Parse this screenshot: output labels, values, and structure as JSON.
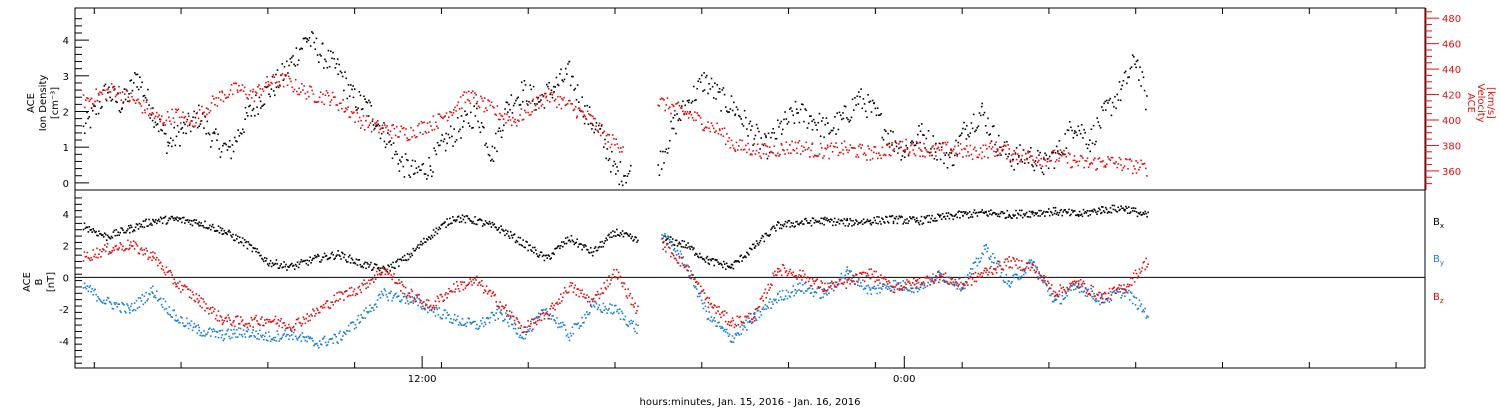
{
  "chart_data": [
    {
      "type": "scatter",
      "panel": "top",
      "left_axis_label": [
        "ACE",
        "Ion Density",
        "[cm⁻³]"
      ],
      "right_axis_label": [
        "ACE",
        "Velocity",
        "[km/s]"
      ],
      "ylim_left": [
        -0.2,
        4.9
      ],
      "ylim_right": [
        345,
        488
      ],
      "left_ticks": [
        "0",
        "1",
        "2",
        "3",
        "4"
      ],
      "right_ticks": [
        "360",
        "380",
        "400",
        "420",
        "440",
        "460",
        "480"
      ],
      "colors": {
        "density": "#000000",
        "velocity": "#e01010"
      },
      "density_points": [
        [
          0.2,
          1.5
        ],
        [
          0.5,
          2.0
        ],
        [
          0.8,
          2.6
        ],
        [
          1.2,
          2.2
        ],
        [
          1.6,
          3.0
        ],
        [
          2.0,
          2.0
        ],
        [
          2.4,
          1.1
        ],
        [
          2.8,
          1.5
        ],
        [
          3.2,
          1.9
        ],
        [
          3.6,
          1.2
        ],
        [
          4.0,
          0.9
        ],
        [
          4.4,
          1.8
        ],
        [
          4.8,
          2.4
        ],
        [
          5.2,
          2.8
        ],
        [
          5.6,
          3.4
        ],
        [
          6.0,
          4.1
        ],
        [
          6.4,
          3.6
        ],
        [
          6.8,
          3.2
        ],
        [
          7.2,
          2.4
        ],
        [
          7.6,
          2.1
        ],
        [
          8.0,
          1.4
        ],
        [
          8.4,
          0.6
        ],
        [
          8.8,
          0.3
        ],
        [
          9.2,
          0.5
        ],
        [
          9.6,
          1.2
        ],
        [
          10.0,
          1.6
        ],
        [
          10.4,
          2.0
        ],
        [
          10.8,
          0.8
        ],
        [
          11.2,
          2.2
        ],
        [
          11.6,
          2.6
        ],
        [
          12.0,
          2.3
        ],
        [
          12.4,
          2.7
        ],
        [
          12.8,
          3.1
        ],
        [
          13.2,
          2.0
        ],
        [
          13.6,
          1.4
        ],
        [
          14.0,
          0.3
        ],
        [
          14.4,
          0.3
        ],
        [
          15.1,
          0.5
        ],
        [
          15.5,
          1.6
        ],
        [
          15.9,
          2.3
        ],
        [
          16.3,
          2.9
        ],
        [
          16.7,
          2.4
        ],
        [
          17.1,
          2.1
        ],
        [
          17.5,
          1.5
        ],
        [
          17.9,
          1.0
        ],
        [
          18.3,
          1.6
        ],
        [
          18.7,
          2.0
        ],
        [
          19.1,
          1.8
        ],
        [
          19.5,
          1.5
        ],
        [
          19.9,
          1.8
        ],
        [
          20.3,
          2.4
        ],
        [
          20.7,
          2.0
        ],
        [
          21.1,
          1.3
        ],
        [
          21.5,
          0.9
        ],
        [
          21.9,
          1.4
        ],
        [
          22.3,
          1.0
        ],
        [
          22.7,
          0.7
        ],
        [
          23.1,
          1.6
        ],
        [
          23.5,
          2.0
        ],
        [
          23.9,
          1.1
        ],
        [
          24.3,
          0.7
        ],
        [
          24.7,
          0.8
        ],
        [
          25.1,
          0.5
        ],
        [
          25.5,
          0.9
        ],
        [
          25.9,
          1.7
        ],
        [
          26.3,
          1.2
        ],
        [
          26.7,
          2.0
        ],
        [
          27.1,
          2.6
        ],
        [
          27.5,
          3.5
        ],
        [
          27.8,
          2.1
        ]
      ],
      "velocity_points": [
        [
          0.2,
          415
        ],
        [
          0.6,
          420
        ],
        [
          1.0,
          425
        ],
        [
          1.4,
          418
        ],
        [
          1.8,
          410
        ],
        [
          2.2,
          400
        ],
        [
          2.6,
          405
        ],
        [
          3.0,
          398
        ],
        [
          3.4,
          410
        ],
        [
          3.8,
          420
        ],
        [
          4.2,
          425
        ],
        [
          4.6,
          420
        ],
        [
          5.0,
          430
        ],
        [
          5.4,
          432
        ],
        [
          5.8,
          425
        ],
        [
          6.2,
          420
        ],
        [
          6.6,
          418
        ],
        [
          7.0,
          410
        ],
        [
          7.4,
          400
        ],
        [
          7.8,
          395
        ],
        [
          8.2,
          392
        ],
        [
          8.6,
          390
        ],
        [
          9.0,
          395
        ],
        [
          9.4,
          400
        ],
        [
          9.8,
          410
        ],
        [
          10.2,
          420
        ],
        [
          10.6,
          412
        ],
        [
          11.0,
          405
        ],
        [
          11.4,
          400
        ],
        [
          11.8,
          410
        ],
        [
          12.2,
          420
        ],
        [
          12.6,
          415
        ],
        [
          13.0,
          408
        ],
        [
          13.4,
          400
        ],
        [
          13.8,
          385
        ],
        [
          14.2,
          380
        ],
        [
          15.1,
          415
        ],
        [
          15.5,
          410
        ],
        [
          15.9,
          405
        ],
        [
          16.3,
          398
        ],
        [
          16.7,
          392
        ],
        [
          17.1,
          380
        ],
        [
          17.5,
          378
        ],
        [
          17.9,
          376
        ],
        [
          18.3,
          378
        ],
        [
          18.7,
          380
        ],
        [
          19.1,
          377
        ],
        [
          19.5,
          376
        ],
        [
          19.9,
          378
        ],
        [
          20.3,
          376
        ],
        [
          20.7,
          374
        ],
        [
          21.1,
          378
        ],
        [
          21.5,
          380
        ],
        [
          21.9,
          378
        ],
        [
          22.3,
          376
        ],
        [
          22.7,
          378
        ],
        [
          23.1,
          375
        ],
        [
          23.5,
          376
        ],
        [
          23.9,
          378
        ],
        [
          24.3,
          374
        ],
        [
          24.7,
          372
        ],
        [
          25.1,
          370
        ],
        [
          25.5,
          372
        ],
        [
          25.9,
          368
        ],
        [
          26.3,
          366
        ],
        [
          26.7,
          368
        ],
        [
          27.1,
          366
        ],
        [
          27.5,
          364
        ],
        [
          27.8,
          362
        ]
      ]
    },
    {
      "type": "scatter",
      "panel": "bottom",
      "left_axis_label": [
        "ACE",
        "B",
        "[nT]"
      ],
      "ylim": [
        -5.7,
        5.5
      ],
      "left_ticks": [
        "-4",
        "-2",
        "0",
        "2",
        "4"
      ],
      "legend": [
        {
          "label": "Bx",
          "main": "B",
          "sub": "x",
          "color": "#000000"
        },
        {
          "label": "By",
          "main": "B",
          "sub": "y",
          "color": "#1a7fd4"
        },
        {
          "label": "Bz",
          "main": "B",
          "sub": "z",
          "color": "#e01010"
        }
      ],
      "bx_points": [
        [
          0.2,
          3.3
        ],
        [
          0.8,
          2.6
        ],
        [
          1.4,
          3.1
        ],
        [
          2.0,
          3.6
        ],
        [
          2.6,
          3.7
        ],
        [
          3.2,
          3.5
        ],
        [
          3.8,
          3.0
        ],
        [
          4.4,
          2.2
        ],
        [
          5.0,
          1.0
        ],
        [
          5.6,
          0.7
        ],
        [
          6.2,
          1.2
        ],
        [
          6.8,
          1.5
        ],
        [
          7.4,
          0.9
        ],
        [
          8.0,
          0.5
        ],
        [
          8.6,
          1.3
        ],
        [
          9.2,
          2.7
        ],
        [
          9.8,
          3.8
        ],
        [
          10.4,
          3.6
        ],
        [
          11.0,
          3.1
        ],
        [
          11.6,
          2.2
        ],
        [
          12.2,
          1.2
        ],
        [
          12.8,
          2.5
        ],
        [
          13.4,
          1.6
        ],
        [
          14.0,
          2.9
        ],
        [
          14.6,
          2.3
        ],
        [
          15.2,
          2.5
        ],
        [
          15.8,
          2.1
        ],
        [
          16.4,
          1.1
        ],
        [
          17.0,
          0.7
        ],
        [
          17.6,
          2.0
        ],
        [
          18.2,
          3.3
        ],
        [
          18.8,
          3.5
        ],
        [
          19.4,
          3.6
        ],
        [
          20.0,
          3.5
        ],
        [
          20.6,
          3.6
        ],
        [
          21.2,
          3.7
        ],
        [
          21.8,
          3.6
        ],
        [
          22.4,
          3.8
        ],
        [
          23.0,
          4.0
        ],
        [
          23.6,
          4.1
        ],
        [
          24.2,
          4.0
        ],
        [
          24.8,
          4.1
        ],
        [
          25.4,
          4.2
        ],
        [
          26.0,
          4.0
        ],
        [
          26.6,
          4.3
        ],
        [
          27.2,
          4.4
        ],
        [
          27.8,
          3.9
        ]
      ],
      "by_points": [
        [
          0.2,
          -0.5
        ],
        [
          0.8,
          -1.5
        ],
        [
          1.4,
          -2.0
        ],
        [
          2.0,
          -0.8
        ],
        [
          2.6,
          -2.5
        ],
        [
          3.2,
          -3.3
        ],
        [
          3.8,
          -3.6
        ],
        [
          4.4,
          -3.4
        ],
        [
          5.0,
          -3.7
        ],
        [
          5.6,
          -3.5
        ],
        [
          6.2,
          -4.1
        ],
        [
          6.8,
          -3.8
        ],
        [
          7.4,
          -2.5
        ],
        [
          8.0,
          -1.0
        ],
        [
          8.6,
          -1.3
        ],
        [
          9.2,
          -1.9
        ],
        [
          9.8,
          -2.6
        ],
        [
          10.4,
          -3.0
        ],
        [
          11.0,
          -2.2
        ],
        [
          11.6,
          -3.6
        ],
        [
          12.2,
          -2.0
        ],
        [
          12.8,
          -3.6
        ],
        [
          13.4,
          -1.8
        ],
        [
          14.0,
          -2.0
        ],
        [
          14.6,
          -3.3
        ],
        [
          15.2,
          2.8
        ],
        [
          15.8,
          1.0
        ],
        [
          16.4,
          -2.4
        ],
        [
          17.0,
          -3.8
        ],
        [
          17.6,
          -2.5
        ],
        [
          18.2,
          -1.2
        ],
        [
          18.8,
          -0.6
        ],
        [
          19.4,
          -1.0
        ],
        [
          20.0,
          0.4
        ],
        [
          20.6,
          -0.8
        ],
        [
          21.2,
          -0.4
        ],
        [
          21.8,
          -0.6
        ],
        [
          22.4,
          0.2
        ],
        [
          23.0,
          -0.5
        ],
        [
          23.6,
          1.9
        ],
        [
          24.2,
          -0.4
        ],
        [
          24.8,
          1.0
        ],
        [
          25.4,
          -1.5
        ],
        [
          26.0,
          -0.5
        ],
        [
          26.6,
          -1.4
        ],
        [
          27.2,
          -0.8
        ],
        [
          27.8,
          -2.3
        ]
      ],
      "bz_points": [
        [
          0.2,
          1.3
        ],
        [
          0.8,
          1.8
        ],
        [
          1.4,
          2.1
        ],
        [
          2.0,
          1.4
        ],
        [
          2.6,
          -0.3
        ],
        [
          3.2,
          -1.4
        ],
        [
          3.8,
          -2.6
        ],
        [
          4.4,
          -2.8
        ],
        [
          5.0,
          -2.6
        ],
        [
          5.6,
          -3.0
        ],
        [
          6.2,
          -2.2
        ],
        [
          6.8,
          -1.2
        ],
        [
          7.4,
          -0.6
        ],
        [
          8.0,
          0.6
        ],
        [
          8.6,
          -0.9
        ],
        [
          9.2,
          -1.8
        ],
        [
          9.8,
          -0.6
        ],
        [
          10.4,
          -0.2
        ],
        [
          11.0,
          -1.6
        ],
        [
          11.6,
          -3.2
        ],
        [
          12.2,
          -2.4
        ],
        [
          12.8,
          -0.5
        ],
        [
          13.4,
          -1.5
        ],
        [
          14.0,
          0.4
        ],
        [
          14.6,
          -2.2
        ],
        [
          15.2,
          2.2
        ],
        [
          15.8,
          0.8
        ],
        [
          16.4,
          -1.5
        ],
        [
          17.0,
          -2.8
        ],
        [
          17.6,
          -2.4
        ],
        [
          18.2,
          0.6
        ],
        [
          18.8,
          0.2
        ],
        [
          19.4,
          -0.6
        ],
        [
          20.0,
          -0.3
        ],
        [
          20.6,
          0.3
        ],
        [
          21.2,
          -0.6
        ],
        [
          21.8,
          -0.3
        ],
        [
          22.4,
          0.1
        ],
        [
          23.0,
          -0.4
        ],
        [
          23.6,
          0.4
        ],
        [
          24.2,
          1.0
        ],
        [
          24.8,
          0.7
        ],
        [
          25.4,
          -0.9
        ],
        [
          26.0,
          -0.3
        ],
        [
          26.6,
          -1.2
        ],
        [
          27.2,
          -0.6
        ],
        [
          27.8,
          1.1
        ]
      ]
    }
  ],
  "x_axis": {
    "xlim": [
      0,
      35
    ],
    "data_start": 0,
    "data_end": 27.8,
    "gap": [
      14.6,
      15.0
    ],
    "ticks": [
      {
        "x": 9.0,
        "label": "12:00"
      },
      {
        "x": 21.5,
        "label": "0:00"
      }
    ],
    "label": "hours:minutes, Jan. 15, 2016 - Jan. 16, 2016"
  }
}
